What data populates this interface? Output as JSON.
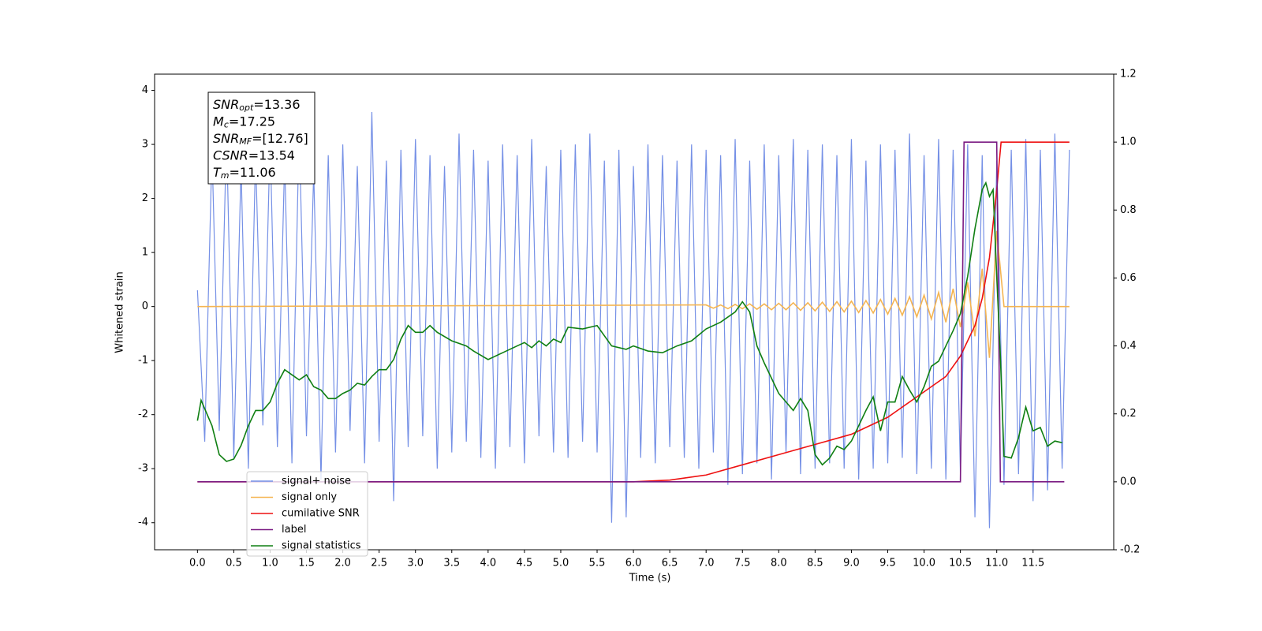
{
  "chart_data": {
    "type": "line",
    "xlabel": "Time (s)",
    "ylabel": "Whitened strain",
    "xlim": [
      -0.59,
      12.61
    ],
    "ylim": [
      -4.5,
      4.3
    ],
    "y2lim": [
      -0.2,
      1.2
    ],
    "xticks": [
      {
        "value": 0,
        "label": "0.0"
      },
      0.5,
      {
        "value": 1,
        "label": "1.0"
      },
      1.5,
      {
        "value": 2,
        "label": "2.0"
      },
      2.5,
      {
        "value": 3,
        "label": "3.0"
      },
      3.5,
      {
        "value": 4,
        "label": "4.0"
      },
      4.5,
      {
        "value": 5,
        "label": "5.0"
      },
      5.5,
      {
        "value": 6,
        "label": "6.0"
      },
      6.5,
      {
        "value": 7,
        "label": "7.0"
      },
      7.5,
      {
        "value": 8,
        "label": "8.0"
      },
      8.5,
      {
        "value": 9,
        "label": "9.0"
      },
      9.5,
      {
        "value": 10,
        "label": "10.0"
      },
      10.5,
      {
        "value": 11,
        "label": "11.0"
      },
      11.5
    ],
    "yticks": [
      -4,
      -3,
      -2,
      -1,
      0,
      1,
      2,
      3,
      4
    ],
    "y2ticks": [
      -0.2,
      {
        "value": 0,
        "label": "0.0"
      },
      0.2,
      0.4,
      0.6,
      0.8,
      {
        "value": 1,
        "label": "1.0"
      },
      1.2
    ],
    "grid": false,
    "legend": "lower left",
    "annotation": [
      {
        "base": "SNR",
        "sub": "opt",
        "rest": "=13.36"
      },
      {
        "base": "M",
        "sub": "c",
        "rest": "=17.25"
      },
      {
        "base": "SNR",
        "sub": "MF",
        "rest": "=[12.76]"
      },
      {
        "base": "CSNR",
        "sub": "",
        "rest": "=13.54"
      },
      {
        "base": "T",
        "sub": "m",
        "rest": "=11.06"
      }
    ],
    "series": [
      {
        "name": "signal+ noise",
        "color": "#7590e6",
        "x": [
          0,
          0.1,
          0.2,
          0.3,
          0.4,
          0.5,
          0.6,
          0.7,
          0.8,
          0.9,
          1,
          1.1,
          1.2,
          1.3,
          1.4,
          1.5,
          1.6,
          1.7,
          1.8,
          1.9,
          2,
          2.1,
          2.2,
          2.3,
          2.4,
          2.5,
          2.6,
          2.7,
          2.8,
          2.9,
          3,
          3.1,
          3.2,
          3.3,
          3.4,
          3.5,
          3.6,
          3.7,
          3.8,
          3.9,
          4,
          4.1,
          4.2,
          4.3,
          4.4,
          4.5,
          4.6,
          4.7,
          4.8,
          4.9,
          5,
          5.1,
          5.2,
          5.3,
          5.4,
          5.5,
          5.6,
          5.7,
          5.8,
          5.9,
          6,
          6.1,
          6.2,
          6.3,
          6.4,
          6.5,
          6.6,
          6.7,
          6.8,
          6.9,
          7,
          7.1,
          7.2,
          7.3,
          7.4,
          7.5,
          7.6,
          7.7,
          7.8,
          7.9,
          8,
          8.1,
          8.2,
          8.3,
          8.4,
          8.5,
          8.6,
          8.7,
          8.8,
          8.9,
          9,
          9.1,
          9.2,
          9.3,
          9.4,
          9.5,
          9.6,
          9.7,
          9.8,
          9.9,
          10,
          10.1,
          10.2,
          10.3,
          10.4,
          10.5,
          10.6,
          10.7,
          10.8,
          10.9,
          11,
          11.1,
          11.2,
          11.3,
          11.4,
          11.5,
          11.6,
          11.7,
          11.8,
          11.9,
          12
        ],
        "values": [
          0.3,
          -2.5,
          2.9,
          -2.3,
          3.2,
          -2.8,
          2.6,
          -3.0,
          2.8,
          -2.2,
          3.1,
          -2.6,
          2.7,
          -2.9,
          3.3,
          -2.4,
          2.5,
          -3.2,
          2.8,
          -2.7,
          3.0,
          -2.3,
          2.6,
          -2.9,
          3.6,
          -2.5,
          2.7,
          -3.6,
          2.9,
          -2.6,
          3.1,
          -2.4,
          2.8,
          -3.0,
          2.6,
          -2.7,
          3.2,
          -2.5,
          2.9,
          -2.8,
          2.7,
          -3.0,
          3.0,
          -2.6,
          2.8,
          -2.9,
          3.1,
          -2.4,
          2.6,
          -2.7,
          2.9,
          -2.8,
          3.0,
          -2.5,
          3.2,
          -2.7,
          2.7,
          -4.0,
          2.9,
          -3.9,
          2.6,
          -2.8,
          3.0,
          -2.9,
          2.8,
          -2.6,
          2.7,
          -2.8,
          3.0,
          -3.0,
          2.9,
          -2.7,
          2.8,
          -3.3,
          3.1,
          -3.1,
          2.7,
          -2.9,
          3.0,
          -3.2,
          2.8,
          -2.7,
          3.1,
          -3.1,
          2.9,
          -3.0,
          3.0,
          -2.9,
          2.8,
          -3.0,
          3.1,
          -3.2,
          2.7,
          -3.0,
          3.0,
          -2.9,
          2.9,
          -2.8,
          3.2,
          -3.1,
          2.8,
          -3.0,
          3.1,
          -3.2,
          2.9,
          -3.1,
          3.0,
          -3.9,
          2.8,
          -4.1,
          2.7,
          -3.3,
          2.9,
          -3.1,
          3.1,
          -3.6,
          2.9,
          -3.4,
          3.2,
          -3.0,
          2.9
        ]
      },
      {
        "name": "signal only",
        "color": "#f5b552",
        "x": [
          0,
          7,
          7.1,
          7.2,
          7.3,
          7.4,
          7.5,
          7.6,
          7.7,
          7.8,
          7.9,
          8,
          8.1,
          8.2,
          8.3,
          8.4,
          8.5,
          8.6,
          8.7,
          8.8,
          8.9,
          9,
          9.1,
          9.2,
          9.3,
          9.4,
          9.5,
          9.6,
          9.7,
          9.8,
          9.9,
          10,
          10.1,
          10.2,
          10.3,
          10.4,
          10.5,
          10.6,
          10.7,
          10.8,
          10.9,
          11,
          11.1,
          12
        ],
        "values": [
          0,
          0.03,
          -0.03,
          0.03,
          -0.04,
          0.04,
          -0.04,
          0.05,
          -0.05,
          0.05,
          -0.06,
          0.06,
          -0.06,
          0.07,
          -0.07,
          0.07,
          -0.08,
          0.08,
          -0.09,
          0.09,
          -0.1,
          0.1,
          -0.11,
          0.11,
          -0.12,
          0.13,
          -0.14,
          0.15,
          -0.16,
          0.18,
          -0.19,
          0.21,
          -0.23,
          0.26,
          -0.29,
          0.33,
          -0.38,
          0.45,
          -0.55,
          0.7,
          -0.95,
          1.4,
          0,
          0
        ]
      },
      {
        "name": "cumilative SNR",
        "color": "#ee1111",
        "axis": "y2",
        "x": [
          0,
          6,
          6.5,
          7,
          7.5,
          8,
          8.5,
          9,
          9.5,
          10,
          10.3,
          10.5,
          10.7,
          10.8,
          10.9,
          11,
          11.06,
          11.07,
          12
        ],
        "values": [
          0,
          0,
          0.005,
          0.02,
          0.05,
          0.08,
          0.11,
          0.14,
          0.19,
          0.265,
          0.31,
          0.37,
          0.46,
          0.54,
          0.66,
          0.86,
          1,
          1,
          1
        ]
      },
      {
        "name": "label",
        "color": "#7a1a82",
        "axis": "y2",
        "x": [
          0,
          10.5,
          10.55,
          11,
          11.05,
          11.93
        ],
        "values": [
          0,
          0,
          1,
          1,
          0,
          0
        ]
      },
      {
        "name": "signal statistics",
        "color": "#0f7f12",
        "axis": "y2",
        "x": [
          0,
          0.05,
          0.2,
          0.3,
          0.4,
          0.5,
          0.6,
          0.7,
          0.8,
          0.9,
          1,
          1.1,
          1.2,
          1.3,
          1.4,
          1.5,
          1.6,
          1.7,
          1.8,
          1.9,
          2,
          2.1,
          2.2,
          2.3,
          2.4,
          2.5,
          2.6,
          2.7,
          2.8,
          2.9,
          3,
          3.1,
          3.2,
          3.3,
          3.5,
          3.7,
          3.8,
          4,
          4.2,
          4.4,
          4.5,
          4.6,
          4.7,
          4.8,
          4.9,
          5,
          5.1,
          5.3,
          5.5,
          5.7,
          5.9,
          6,
          6.2,
          6.4,
          6.6,
          6.8,
          7,
          7.2,
          7.4,
          7.5,
          7.6,
          7.7,
          7.8,
          8,
          8.2,
          8.3,
          8.4,
          8.5,
          8.6,
          8.7,
          8.8,
          8.9,
          9,
          9.1,
          9.2,
          9.3,
          9.4,
          9.5,
          9.6,
          9.7,
          9.8,
          9.9,
          10,
          10.1,
          10.2,
          10.3,
          10.4,
          10.5,
          10.6,
          10.7,
          10.8,
          10.85,
          10.9,
          10.95,
          11,
          11.05,
          11.1,
          11.2,
          11.3,
          11.4,
          11.5,
          11.6,
          11.7,
          11.8,
          11.9
        ],
        "values": [
          0.18,
          0.24,
          0.165,
          0.08,
          0.06,
          0.067,
          0.107,
          0.165,
          0.21,
          0.21,
          0.235,
          0.29,
          0.33,
          0.315,
          0.3,
          0.315,
          0.28,
          0.27,
          0.245,
          0.245,
          0.26,
          0.27,
          0.29,
          0.285,
          0.31,
          0.33,
          0.33,
          0.36,
          0.42,
          0.46,
          0.44,
          0.44,
          0.46,
          0.44,
          0.415,
          0.4,
          0.385,
          0.36,
          0.38,
          0.4,
          0.41,
          0.395,
          0.415,
          0.4,
          0.42,
          0.41,
          0.455,
          0.45,
          0.46,
          0.4,
          0.39,
          0.4,
          0.385,
          0.38,
          0.4,
          0.415,
          0.45,
          0.47,
          0.5,
          0.53,
          0.5,
          0.4,
          0.35,
          0.26,
          0.21,
          0.245,
          0.21,
          0.08,
          0.05,
          0.07,
          0.105,
          0.095,
          0.12,
          0.165,
          0.21,
          0.25,
          0.15,
          0.235,
          0.235,
          0.31,
          0.27,
          0.235,
          0.28,
          0.34,
          0.355,
          0.4,
          0.445,
          0.495,
          0.605,
          0.745,
          0.86,
          0.88,
          0.84,
          0.86,
          0.605,
          0.37,
          0.075,
          0.07,
          0.13,
          0.22,
          0.15,
          0.16,
          0.105,
          0.12,
          0.115
        ]
      }
    ]
  }
}
